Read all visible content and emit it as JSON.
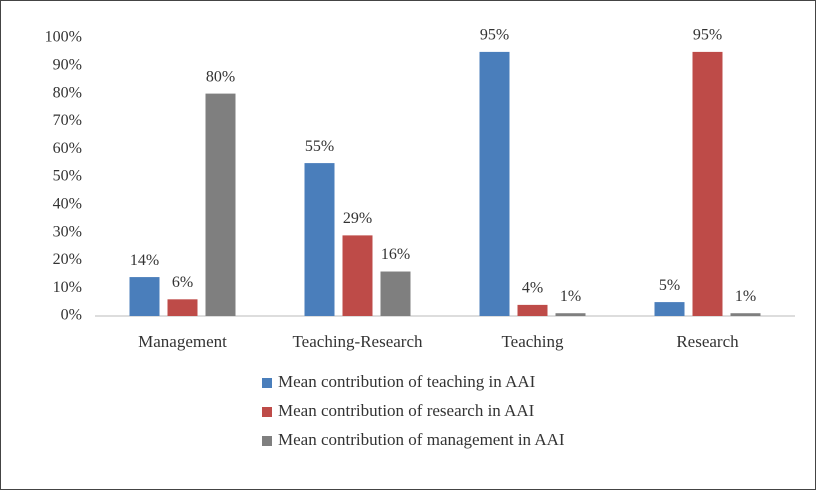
{
  "chart_data": {
    "type": "bar",
    "categories": [
      "Management",
      "Teaching-Research",
      "Teaching",
      "Research"
    ],
    "series": [
      {
        "name": "Mean contribution of teaching in AAI",
        "color": "#4a7ebb",
        "values": [
          14,
          55,
          95,
          5
        ],
        "value_labels": [
          "14%",
          "55%",
          "95%",
          "5%"
        ]
      },
      {
        "name": "Mean contribution of research in AAI",
        "color": "#be4b48",
        "values": [
          6,
          29,
          4,
          95
        ],
        "value_labels": [
          "6%",
          "29%",
          "4%",
          "95%"
        ]
      },
      {
        "name": "Mean contribution of management in AAI",
        "color": "#7f7f7f",
        "values": [
          80,
          16,
          1,
          1
        ],
        "value_labels": [
          "80%",
          "16%",
          "1%",
          "1%"
        ]
      }
    ],
    "ylim": [
      0,
      100
    ],
    "yticks": [
      {
        "value": 0,
        "label": "0%"
      },
      {
        "value": 10,
        "label": "10%"
      },
      {
        "value": 20,
        "label": "20%"
      },
      {
        "value": 30,
        "label": "30%"
      },
      {
        "value": 40,
        "label": "40%"
      },
      {
        "value": 50,
        "label": "50%"
      },
      {
        "value": 60,
        "label": "60%"
      },
      {
        "value": 70,
        "label": "70%"
      },
      {
        "value": 80,
        "label": "80%"
      },
      {
        "value": 90,
        "label": "90%"
      },
      {
        "value": 100,
        "label": "100%"
      }
    ],
    "grid": false,
    "legend": "bottom"
  }
}
